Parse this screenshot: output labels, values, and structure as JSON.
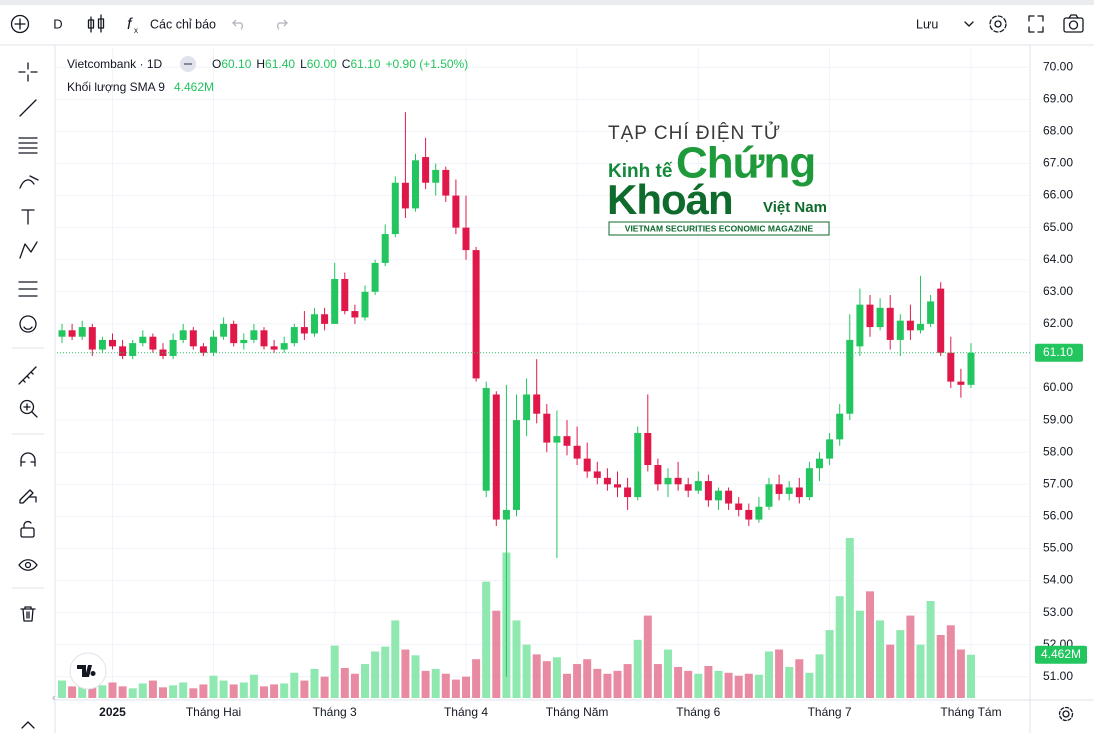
{
  "toolbar": {
    "interval": "D",
    "indicators": "Các chỉ báo",
    "save": "Lưu"
  },
  "legend": {
    "symbol": "Vietcombank · 1D",
    "ohlc": [
      {
        "key": "O",
        "value": "60.10"
      },
      {
        "key": "H",
        "value": "61.40"
      },
      {
        "key": "L",
        "value": "60.00"
      },
      {
        "key": "C",
        "value": "61.10"
      }
    ],
    "change": "+0.90 (+1.50%)",
    "volume_name": "Khối lượng SMA 9",
    "volume_value": "4.462M"
  },
  "watermark": {
    "line1": "TẠP CHÍ ĐIỆN TỬ",
    "kinh_te": "Kinh tế",
    "chung": "Chứng",
    "khoan": "Khoán",
    "viet_nam": "Việt Nam",
    "tagline": "VIETNAM SECURITIES ECONOMIC MAGAZINE"
  },
  "chart_data": {
    "type": "candlestick",
    "up_color": "#22c55e",
    "down_color": "#e0184a",
    "volume_up_color": "#8ee8b0",
    "volume_down_color": "#e98aa3",
    "ylim": [
      50.4,
      70.6
    ],
    "yticks": [
      {
        "value": 51,
        "label": "51.00"
      },
      {
        "value": 52,
        "label": "52.00"
      },
      {
        "value": 53,
        "label": "53.00"
      },
      {
        "value": 54,
        "label": "54.00"
      },
      {
        "value": 55,
        "label": "55.00"
      },
      {
        "value": 56,
        "label": "56.00"
      },
      {
        "value": 57,
        "label": "57.00"
      },
      {
        "value": 58,
        "label": "58.00"
      },
      {
        "value": 59,
        "label": "59.00"
      },
      {
        "value": 60,
        "label": "60.00"
      },
      {
        "value": 61,
        "label": "61.00"
      },
      {
        "value": 62,
        "label": "62.00"
      },
      {
        "value": 63,
        "label": "63.00"
      },
      {
        "value": 64,
        "label": "64.00"
      },
      {
        "value": 65,
        "label": "65.00"
      },
      {
        "value": 66,
        "label": "66.00"
      },
      {
        "value": 67,
        "label": "67.00"
      },
      {
        "value": 68,
        "label": "68.00"
      },
      {
        "value": 69,
        "label": "69.00"
      },
      {
        "value": 70,
        "label": "70.00"
      }
    ],
    "xticks": [
      {
        "value": 5,
        "label": "2025"
      },
      {
        "value": 15,
        "label": "Tháng Hai"
      },
      {
        "value": 27,
        "label": "Tháng 3"
      },
      {
        "value": 40,
        "label": "Tháng 4"
      },
      {
        "value": 51,
        "label": "Tháng Năm"
      },
      {
        "value": 63,
        "label": "Tháng 6"
      },
      {
        "value": 76,
        "label": "Tháng 7"
      },
      {
        "value": 90,
        "label": "Tháng Tám"
      }
    ],
    "last_price": {
      "value": 61.1,
      "label": "61.10"
    },
    "volume_last": {
      "value": 4.462,
      "label": "4.462M"
    },
    "grid": true,
    "candles": [
      [
        61.6,
        62.0,
        61.4,
        61.8
      ],
      [
        61.8,
        62.0,
        61.5,
        61.6
      ],
      [
        61.6,
        62.1,
        61.5,
        61.9
      ],
      [
        61.9,
        62.0,
        61.0,
        61.2
      ],
      [
        61.2,
        61.6,
        61.1,
        61.5
      ],
      [
        61.5,
        61.7,
        61.2,
        61.3
      ],
      [
        61.3,
        61.5,
        60.9,
        61.0
      ],
      [
        61.0,
        61.5,
        60.9,
        61.4
      ],
      [
        61.4,
        61.8,
        61.3,
        61.6
      ],
      [
        61.6,
        61.7,
        61.1,
        61.2
      ],
      [
        61.2,
        61.4,
        60.9,
        61.0
      ],
      [
        61.0,
        61.7,
        60.9,
        61.5
      ],
      [
        61.5,
        62.0,
        61.4,
        61.8
      ],
      [
        61.8,
        61.9,
        61.2,
        61.3
      ],
      [
        61.3,
        61.4,
        61.0,
        61.1
      ],
      [
        61.1,
        61.8,
        61.0,
        61.6
      ],
      [
        61.6,
        62.2,
        61.5,
        62.0
      ],
      [
        62.0,
        62.1,
        61.3,
        61.4
      ],
      [
        61.4,
        61.7,
        61.2,
        61.5
      ],
      [
        61.5,
        62.0,
        61.4,
        61.8
      ],
      [
        61.8,
        61.9,
        61.2,
        61.3
      ],
      [
        61.3,
        61.5,
        61.1,
        61.2
      ],
      [
        61.2,
        61.6,
        61.1,
        61.4
      ],
      [
        61.4,
        62.0,
        61.3,
        61.9
      ],
      [
        61.9,
        62.4,
        61.5,
        61.7
      ],
      [
        61.7,
        62.5,
        61.6,
        62.3
      ],
      [
        62.3,
        62.5,
        61.8,
        62.0
      ],
      [
        62.0,
        63.9,
        62.0,
        63.4
      ],
      [
        63.4,
        63.6,
        62.3,
        62.4
      ],
      [
        62.4,
        62.6,
        62.0,
        62.2
      ],
      [
        62.2,
        63.2,
        62.1,
        63.0
      ],
      [
        63.0,
        64.0,
        62.9,
        63.9
      ],
      [
        63.9,
        65.1,
        63.8,
        64.8
      ],
      [
        64.8,
        66.6,
        64.7,
        66.4
      ],
      [
        66.4,
        68.6,
        65.3,
        65.6
      ],
      [
        65.6,
        67.3,
        65.5,
        67.1
      ],
      [
        67.2,
        67.8,
        66.2,
        66.4
      ],
      [
        66.4,
        67.0,
        66.0,
        66.8
      ],
      [
        66.8,
        66.9,
        65.8,
        66.0
      ],
      [
        66.0,
        66.5,
        64.8,
        65.0
      ],
      [
        65.0,
        66.0,
        64.0,
        64.3
      ],
      [
        64.3,
        64.4,
        60.2,
        60.3
      ],
      [
        56.8,
        60.2,
        56.6,
        60.0
      ],
      [
        59.8,
        59.9,
        55.7,
        55.9
      ],
      [
        55.9,
        60.1,
        51.0,
        56.2
      ],
      [
        56.2,
        59.8,
        56.0,
        59.0
      ],
      [
        59.0,
        60.3,
        58.5,
        59.8
      ],
      [
        59.8,
        60.9,
        58.9,
        59.2
      ],
      [
        59.2,
        59.5,
        58.0,
        58.3
      ],
      [
        58.3,
        59.3,
        54.7,
        58.5
      ],
      [
        58.5,
        59.0,
        57.9,
        58.2
      ],
      [
        58.2,
        58.8,
        57.6,
        57.8
      ],
      [
        57.8,
        58.3,
        57.2,
        57.4
      ],
      [
        57.4,
        57.7,
        57.0,
        57.2
      ],
      [
        57.2,
        57.5,
        56.8,
        57.0
      ],
      [
        57.0,
        57.4,
        56.6,
        56.9
      ],
      [
        56.9,
        57.2,
        56.2,
        56.6
      ],
      [
        56.6,
        58.8,
        56.5,
        58.6
      ],
      [
        58.6,
        59.8,
        57.4,
        57.6
      ],
      [
        57.6,
        57.8,
        56.8,
        57.0
      ],
      [
        57.0,
        57.5,
        56.6,
        57.2
      ],
      [
        57.2,
        57.7,
        56.8,
        57.0
      ],
      [
        57.0,
        57.2,
        56.6,
        56.8
      ],
      [
        56.8,
        57.4,
        56.7,
        57.1
      ],
      [
        57.1,
        57.3,
        56.3,
        56.5
      ],
      [
        56.5,
        56.9,
        56.2,
        56.8
      ],
      [
        56.8,
        56.9,
        56.2,
        56.4
      ],
      [
        56.4,
        56.6,
        56.0,
        56.2
      ],
      [
        56.2,
        56.4,
        55.7,
        55.9
      ],
      [
        55.9,
        56.6,
        55.8,
        56.3
      ],
      [
        56.3,
        57.2,
        56.2,
        57.0
      ],
      [
        57.0,
        57.3,
        56.5,
        56.7
      ],
      [
        56.7,
        57.1,
        56.5,
        56.9
      ],
      [
        56.9,
        57.2,
        56.4,
        56.6
      ],
      [
        56.6,
        57.7,
        56.5,
        57.5
      ],
      [
        57.5,
        58.0,
        57.1,
        57.8
      ],
      [
        57.8,
        58.6,
        57.6,
        58.4
      ],
      [
        58.4,
        59.5,
        58.2,
        59.2
      ],
      [
        59.2,
        62.3,
        59.0,
        61.5
      ],
      [
        61.3,
        63.1,
        61.0,
        62.6
      ],
      [
        62.6,
        62.9,
        61.6,
        61.9
      ],
      [
        61.9,
        62.8,
        61.8,
        62.5
      ],
      [
        62.5,
        62.9,
        61.2,
        61.5
      ],
      [
        61.5,
        62.3,
        61.0,
        62.1
      ],
      [
        62.1,
        62.6,
        61.5,
        61.8
      ],
      [
        61.8,
        63.5,
        61.7,
        62.0
      ],
      [
        62.0,
        62.9,
        61.9,
        62.7
      ],
      [
        63.1,
        63.3,
        61.0,
        61.1
      ],
      [
        61.1,
        61.6,
        60.0,
        60.2
      ],
      [
        60.2,
        60.6,
        59.7,
        60.1
      ],
      [
        60.1,
        61.4,
        60.0,
        61.1
      ]
    ],
    "volume": [
      1.8,
      1.2,
      2.0,
      1.5,
      1.3,
      1.6,
      1.2,
      1.0,
      1.5,
      1.8,
      1.1,
      1.3,
      1.6,
      1.0,
      1.4,
      2.3,
      1.8,
      1.4,
      1.6,
      2.4,
      1.2,
      1.4,
      1.5,
      2.6,
      1.8,
      3.0,
      2.2,
      5.4,
      3.1,
      2.5,
      3.5,
      4.8,
      5.3,
      8.0,
      5.0,
      4.4,
      2.8,
      3.0,
      2.5,
      1.9,
      2.2,
      4.0,
      12.0,
      9.0,
      15.0,
      8.0,
      5.5,
      4.5,
      3.8,
      4.2,
      2.5,
      3.5,
      4.0,
      3.0,
      2.5,
      2.8,
      3.5,
      6.0,
      8.5,
      3.5,
      5.0,
      3.2,
      2.8,
      2.5,
      3.3,
      2.8,
      2.6,
      2.3,
      2.5,
      2.4,
      4.8,
      5.0,
      3.2,
      4.0,
      2.6,
      4.5,
      7.0,
      10.5,
      16.5,
      9.0,
      11.0,
      8.0,
      5.5,
      7.0,
      8.5,
      5.5,
      10.0,
      6.5,
      7.5,
      5.0,
      4.462
    ]
  }
}
